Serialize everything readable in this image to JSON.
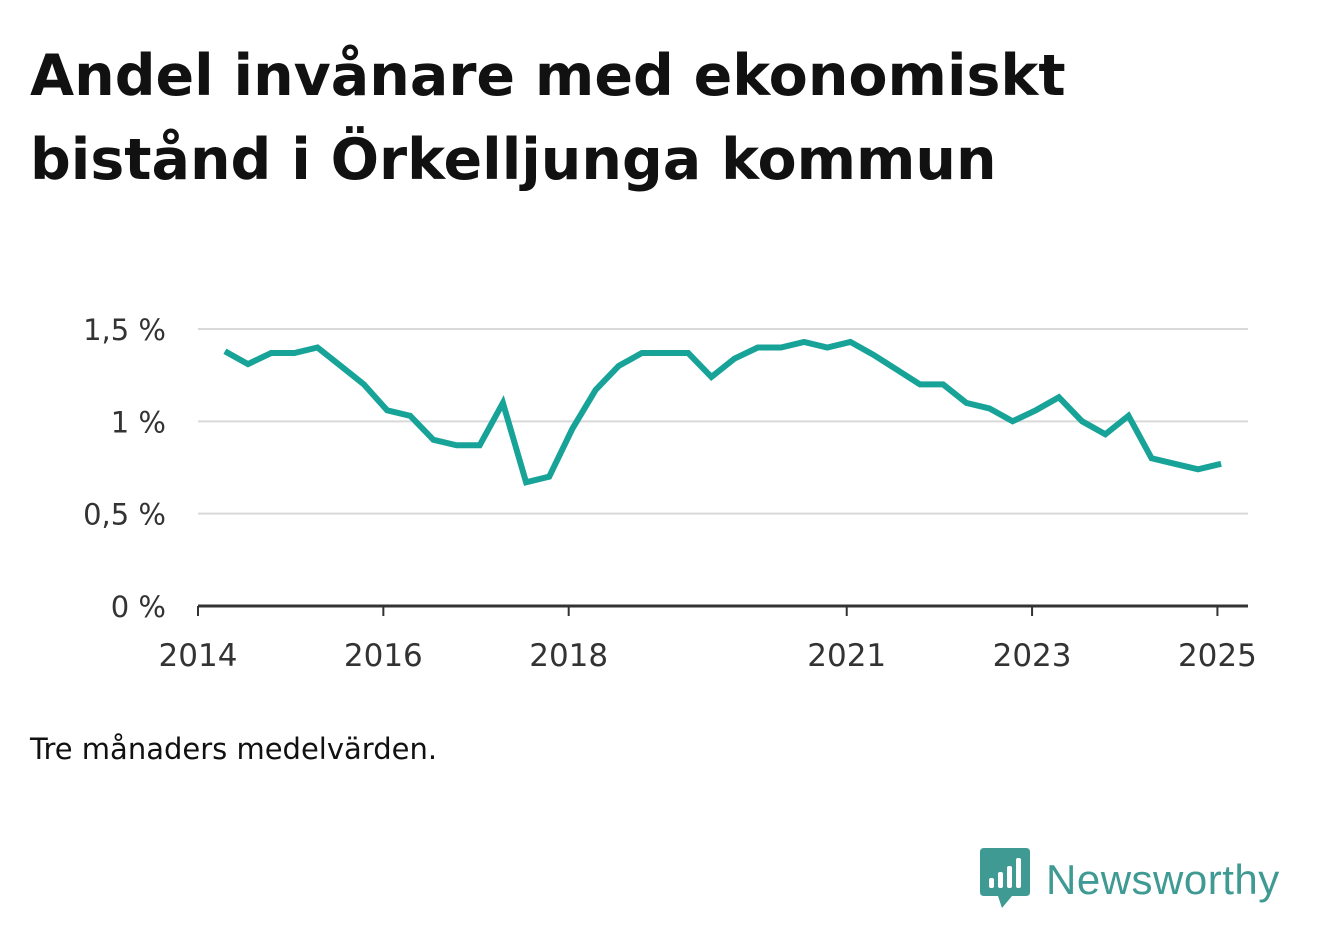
{
  "title": "Andel invånare med ekonomiskt bistånd i Örkelljunga kommun",
  "note": "Tre månaders medelvärden.",
  "brand": {
    "name": "Newsworthy",
    "icon": "bar-chart-speech-bubble-icon",
    "color": "#3f9a93"
  },
  "colors": {
    "line": "#17a398",
    "grid": "#d9d9d9",
    "axis": "#333333",
    "text": "#111111"
  },
  "chart_data": {
    "type": "line",
    "title": "Andel invånare med ekonomiskt bistånd i Örkelljunga kommun",
    "xlabel": "",
    "ylabel": "",
    "ylim": [
      0,
      1.5
    ],
    "xlim": [
      2014.0,
      2025.33
    ],
    "grid": true,
    "y_ticks": [
      {
        "value": 0,
        "label": "0 %"
      },
      {
        "value": 0.5,
        "label": "0,5 %"
      },
      {
        "value": 1,
        "label": "1 %"
      },
      {
        "value": 1.5,
        "label": "1,5 %"
      }
    ],
    "x_ticks": [
      {
        "value": 2014,
        "label": "2014"
      },
      {
        "value": 2016,
        "label": "2016"
      },
      {
        "value": 2018,
        "label": "2018"
      },
      {
        "value": 2021,
        "label": "2021"
      },
      {
        "value": 2023,
        "label": "2023"
      },
      {
        "value": 2025,
        "label": "2025"
      }
    ],
    "series": [
      {
        "x": [
          2014.29,
          2014.54,
          2014.79,
          2015.04,
          2015.29,
          2015.54,
          2015.79,
          2016.04,
          2016.29,
          2016.54,
          2016.79,
          2017.04,
          2017.29,
          2017.54,
          2017.79,
          2018.04,
          2018.29,
          2018.54,
          2018.79,
          2019.04,
          2019.29,
          2019.54,
          2019.79,
          2020.04,
          2020.29,
          2020.54,
          2020.79,
          2021.04,
          2021.29,
          2021.54,
          2021.79,
          2022.04,
          2022.29,
          2022.54,
          2022.79,
          2023.04,
          2023.29,
          2023.54,
          2023.79,
          2024.04,
          2024.29,
          2024.54,
          2024.79,
          2025.04
        ],
        "values": [
          1.38,
          1.31,
          1.37,
          1.37,
          1.4,
          1.3,
          1.2,
          1.06,
          1.03,
          0.9,
          0.87,
          0.87,
          1.1,
          0.67,
          0.7,
          0.96,
          1.17,
          1.3,
          1.37,
          1.37,
          1.37,
          1.24,
          1.34,
          1.4,
          1.4,
          1.43,
          1.4,
          1.43,
          1.36,
          1.28,
          1.2,
          1.2,
          1.1,
          1.07,
          1.0,
          1.06,
          1.13,
          1.0,
          0.93,
          1.03,
          0.8,
          0.77,
          0.74,
          0.77
        ]
      }
    ]
  }
}
